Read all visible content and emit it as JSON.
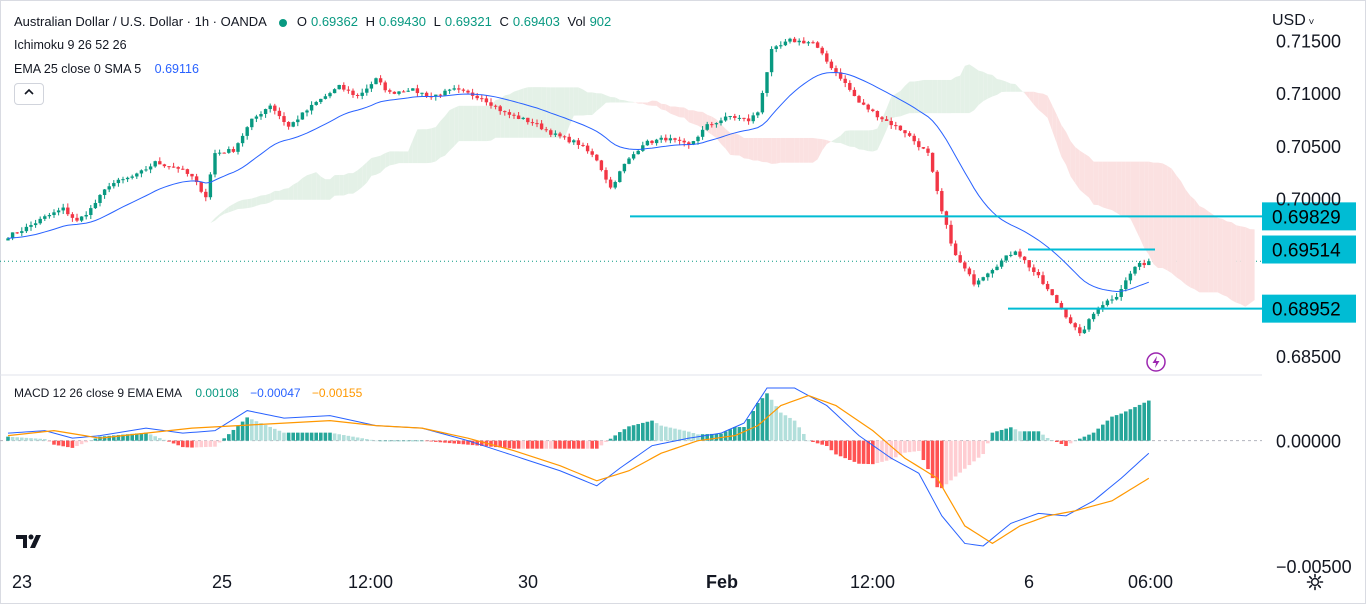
{
  "header": {
    "symbol": "Australian Dollar / U.S. Dollar · 1h · OANDA",
    "open": "0.69362",
    "high": "0.69430",
    "low": "0.69321",
    "close": "0.69403",
    "volume": "902",
    "open_key": "O",
    "high_key": "H",
    "low_key": "L",
    "close_key": "C",
    "vol_key": "Vol"
  },
  "indicators": {
    "ichimoku": "Ichimoku 9 26 52 26",
    "ema": "EMA 25 close 0 SMA 5",
    "ema_value": "0.69116",
    "macd": "MACD 12 26 close 9 EMA EMA",
    "macd_hist": "0.00108",
    "macd_line": "−0.00047",
    "macd_signal": "−0.00155"
  },
  "currency": "USD",
  "colors": {
    "up": "#089981",
    "down": "#f23645",
    "ema": "#2962ff",
    "macd": "#2962ff",
    "signal": "#ff9800",
    "level": "#00bcd4",
    "cloud_bull": "#e4f1e7",
    "cloud_bear": "#fbe1e1"
  },
  "icons": {
    "collapse": "chevron-up-icon",
    "logo": "tradingview-logo-icon",
    "settings": "gear-icon",
    "alert": "flash-icon"
  },
  "chart_data": [
    {
      "type": "candlestick",
      "title": "Australian Dollar / U.S. Dollar · 1h · OANDA",
      "y_axis_ticks": [
        "0.71500",
        "0.71000",
        "0.70500",
        "0.70000",
        "0.68500"
      ],
      "ylim": [
        0.6835,
        0.716
      ],
      "x_axis_ticks": [
        "23",
        "25",
        "12:00",
        "30",
        "Feb",
        "12:00",
        "6",
        "06:00"
      ],
      "price_labels": [
        {
          "label": "0.69829",
          "value": 0.69829
        },
        {
          "label": "0.69514",
          "value": 0.69514
        },
        {
          "label": "0.68952",
          "value": 0.68952
        }
      ],
      "horizontal_lines": [
        {
          "value": 0.69829,
          "x_start": "30 (late)",
          "x_end": "right edge"
        },
        {
          "value": 0.69514,
          "x_start": "6",
          "x_end": "latest bar"
        },
        {
          "value": 0.68952,
          "x_start": "6",
          "x_end": "right edge"
        }
      ],
      "last_price": 0.69403,
      "close_path": [
        [
          0,
          0.6964
        ],
        [
          4,
          0.6972
        ],
        [
          8,
          0.6982
        ],
        [
          12,
          0.699
        ],
        [
          15,
          0.6978
        ],
        [
          18,
          0.699
        ],
        [
          22,
          0.7013
        ],
        [
          28,
          0.7022
        ],
        [
          32,
          0.7034
        ],
        [
          37,
          0.7029
        ],
        [
          40,
          0.702
        ],
        [
          43,
          0.7002
        ],
        [
          45,
          0.7043
        ],
        [
          49,
          0.7046
        ],
        [
          53,
          0.7074
        ],
        [
          57,
          0.7089
        ],
        [
          61,
          0.7068
        ],
        [
          64,
          0.708
        ],
        [
          67,
          0.7091
        ],
        [
          72,
          0.7106
        ],
        [
          76,
          0.7097
        ],
        [
          80,
          0.7113
        ],
        [
          83,
          0.71
        ],
        [
          87,
          0.7104
        ],
        [
          92,
          0.7097
        ],
        [
          97,
          0.7103
        ],
        [
          103,
          0.7096
        ],
        [
          108,
          0.7081
        ],
        [
          114,
          0.7072
        ],
        [
          119,
          0.706
        ],
        [
          124,
          0.7052
        ],
        [
          128,
          0.7037
        ],
        [
          131,
          0.701
        ],
        [
          134,
          0.7032
        ],
        [
          138,
          0.7052
        ],
        [
          143,
          0.7057
        ],
        [
          148,
          0.705
        ],
        [
          152,
          0.7069
        ],
        [
          157,
          0.7078
        ],
        [
          161,
          0.7074
        ],
        [
          163,
          0.7082
        ],
        [
          166,
          0.714
        ],
        [
          170,
          0.715
        ],
        [
          175,
          0.7148
        ],
        [
          178,
          0.713
        ],
        [
          181,
          0.7115
        ],
        [
          185,
          0.7091
        ],
        [
          190,
          0.7076
        ],
        [
          195,
          0.7063
        ],
        [
          200,
          0.7042
        ],
        [
          203,
          0.6987
        ],
        [
          206,
          0.6945
        ],
        [
          210,
          0.692
        ],
        [
          215,
          0.6937
        ],
        [
          219,
          0.6951
        ],
        [
          224,
          0.6925
        ],
        [
          229,
          0.6895
        ],
        [
          233,
          0.687
        ],
        [
          237,
          0.6897
        ],
        [
          241,
          0.6908
        ],
        [
          245,
          0.6935
        ],
        [
          248,
          0.694
        ]
      ]
    },
    {
      "type": "macd",
      "title": "MACD 12 26 close 9 EMA EMA",
      "y_axis_ticks": [
        "0.00000",
        "−0.00500"
      ],
      "ylim": [
        -0.005,
        0.0025
      ],
      "x_axis_ticks": [
        "23",
        "25",
        "12:00",
        "30",
        "Feb",
        "12:00",
        "6",
        "06:00"
      ],
      "macd_path": [
        [
          0,
          0.0003
        ],
        [
          8,
          0.0004
        ],
        [
          14,
          0.0001
        ],
        [
          20,
          0.0002
        ],
        [
          30,
          0.0005
        ],
        [
          38,
          0.0003
        ],
        [
          45,
          0.0004
        ],
        [
          52,
          0.0012
        ],
        [
          60,
          0.0009
        ],
        [
          70,
          0.001
        ],
        [
          80,
          0.0006
        ],
        [
          90,
          0.0005
        ],
        [
          100,
          0.0
        ],
        [
          110,
          -0.0006
        ],
        [
          120,
          -0.0012
        ],
        [
          128,
          -0.0018
        ],
        [
          133,
          -0.0011
        ],
        [
          140,
          -0.0002
        ],
        [
          148,
          0.0001
        ],
        [
          155,
          0.0003
        ],
        [
          160,
          0.0007
        ],
        [
          165,
          0.0021
        ],
        [
          171,
          0.0021
        ],
        [
          178,
          0.0014
        ],
        [
          185,
          0.0002
        ],
        [
          192,
          -0.0007
        ],
        [
          198,
          -0.0013
        ],
        [
          203,
          -0.003
        ],
        [
          208,
          -0.0041
        ],
        [
          212,
          -0.0042
        ],
        [
          218,
          -0.0033
        ],
        [
          224,
          -0.0029
        ],
        [
          230,
          -0.003
        ],
        [
          236,
          -0.0024
        ],
        [
          242,
          -0.0015
        ],
        [
          248,
          -0.0005
        ]
      ],
      "signal_path": [
        [
          0,
          0.0002
        ],
        [
          10,
          0.0004
        ],
        [
          20,
          0.0001
        ],
        [
          30,
          0.0003
        ],
        [
          40,
          0.0005
        ],
        [
          50,
          0.0006
        ],
        [
          60,
          0.0007
        ],
        [
          70,
          0.0008
        ],
        [
          80,
          0.0006
        ],
        [
          90,
          0.0005
        ],
        [
          100,
          0.0001
        ],
        [
          110,
          -0.0004
        ],
        [
          120,
          -0.001
        ],
        [
          128,
          -0.0016
        ],
        [
          135,
          -0.0012
        ],
        [
          142,
          -0.0005
        ],
        [
          150,
          0.0
        ],
        [
          158,
          0.0002
        ],
        [
          163,
          0.0006
        ],
        [
          168,
          0.0014
        ],
        [
          174,
          0.0018
        ],
        [
          180,
          0.0014
        ],
        [
          188,
          0.0004
        ],
        [
          195,
          -0.0007
        ],
        [
          202,
          -0.0015
        ],
        [
          208,
          -0.0034
        ],
        [
          214,
          -0.0041
        ],
        [
          220,
          -0.0034
        ],
        [
          226,
          -0.003
        ],
        [
          232,
          -0.0028
        ],
        [
          240,
          -0.0024
        ],
        [
          248,
          -0.0015
        ]
      ]
    }
  ]
}
